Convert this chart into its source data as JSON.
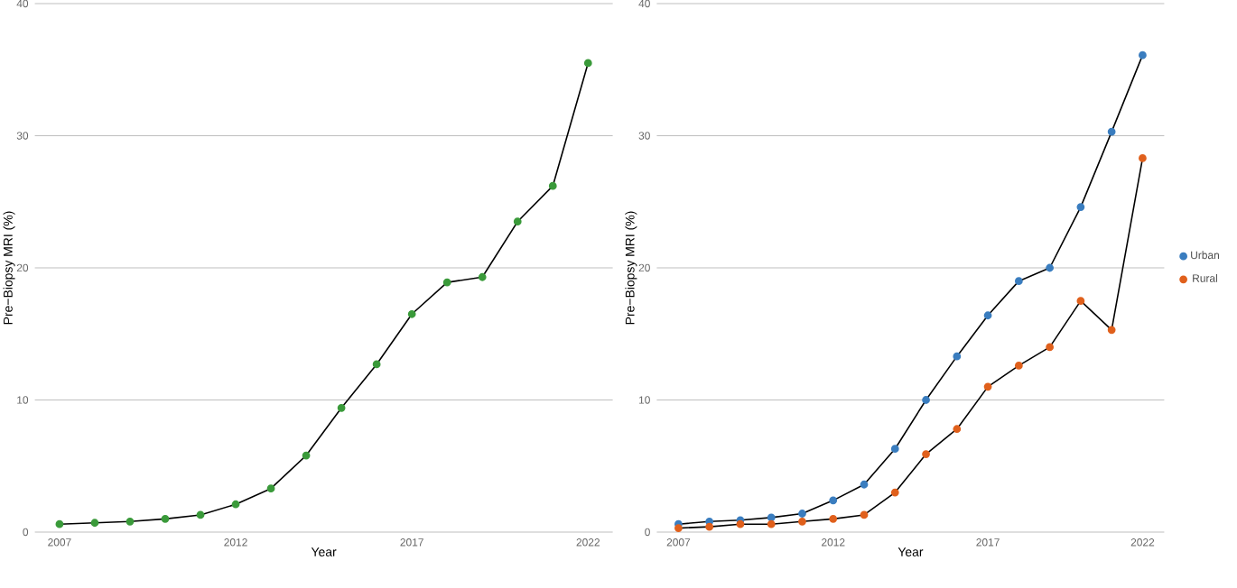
{
  "chart_data": [
    {
      "type": "line",
      "xlabel": "Year",
      "ylabel": "Pre−Biopsy MRI (%)",
      "x": [
        2007,
        2008,
        2009,
        2010,
        2011,
        2012,
        2013,
        2014,
        2015,
        2016,
        2017,
        2018,
        2019,
        2020,
        2021,
        2022
      ],
      "series": [
        {
          "color": "#3a9a3a",
          "values": [
            0.6,
            0.7,
            0.8,
            1.0,
            1.3,
            2.1,
            3.3,
            5.8,
            9.4,
            12.7,
            16.5,
            18.9,
            19.3,
            23.5,
            26.2,
            35.5
          ]
        }
      ],
      "xlim": [
        2006.3,
        2022.7
      ],
      "ylim": [
        0,
        40
      ],
      "xticks": [
        2007,
        2012,
        2017,
        2022
      ],
      "yticks": [
        0,
        10,
        20,
        30,
        40
      ],
      "grid": "y",
      "marker": "circle",
      "line_style": "solid"
    },
    {
      "type": "line",
      "xlabel": "Year",
      "ylabel": "Pre−Biopsy MRI (%)",
      "x": [
        2007,
        2008,
        2009,
        2010,
        2011,
        2012,
        2013,
        2014,
        2015,
        2016,
        2017,
        2018,
        2019,
        2020,
        2021,
        2022
      ],
      "series": [
        {
          "name": "Urban",
          "color": "#3a7dbf",
          "values": [
            0.6,
            0.8,
            0.9,
            1.1,
            1.4,
            2.4,
            3.6,
            6.3,
            10.0,
            13.3,
            16.4,
            19.0,
            20.0,
            24.6,
            30.3,
            36.1
          ]
        },
        {
          "name": "Rural",
          "color": "#e0601c",
          "values": [
            0.3,
            0.4,
            0.6,
            0.6,
            0.8,
            1.0,
            1.3,
            3.0,
            5.9,
            7.8,
            11.0,
            12.6,
            14.0,
            17.5,
            15.3,
            28.3
          ]
        }
      ],
      "xlim": [
        2006.3,
        2022.7
      ],
      "ylim": [
        0,
        40
      ],
      "xticks": [
        2007,
        2012,
        2017,
        2022
      ],
      "yticks": [
        0,
        10,
        20,
        30,
        40
      ],
      "grid": "y",
      "legend": "right",
      "marker": "circle",
      "line_style": "solid"
    }
  ]
}
